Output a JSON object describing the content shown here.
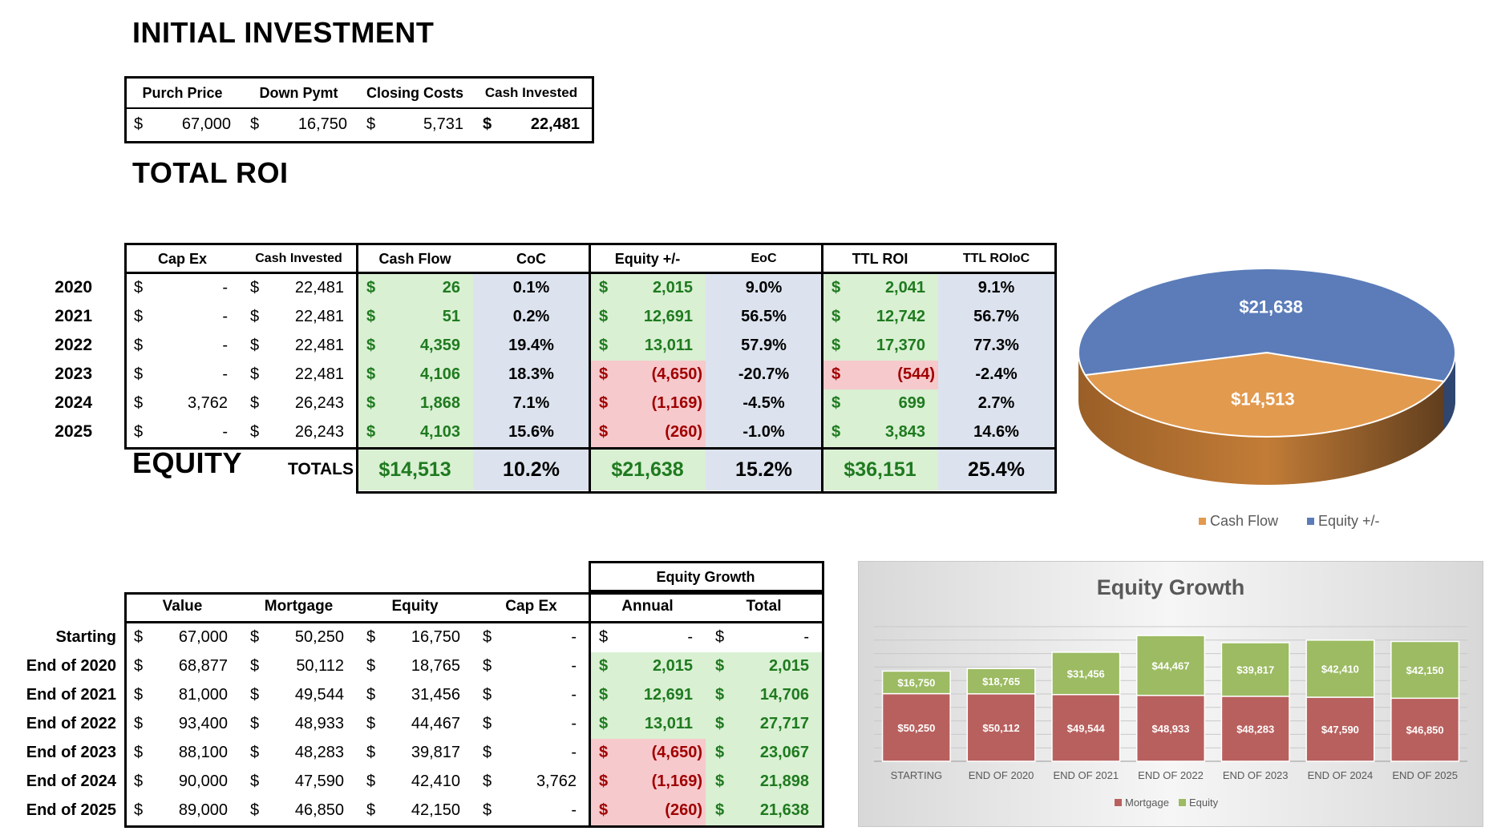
{
  "initial": {
    "title": "INITIAL INVESTMENT",
    "headers": [
      "Purch Price",
      "Down Pymt",
      "Closing Costs",
      "Cash Invested"
    ],
    "values": [
      "67,000",
      "16,750",
      "5,731",
      "22,481"
    ],
    "currency": "$"
  },
  "roi": {
    "title": "TOTAL ROI",
    "headers": [
      "Cap Ex",
      "Cash Invested",
      "Cash Flow",
      "CoC",
      "Equity +/-",
      "EoC",
      "TTL ROI",
      "TTL ROIoC"
    ],
    "rows": [
      {
        "year": "2020",
        "capex": "-",
        "cash_invested": "22,481",
        "cash_flow": "26",
        "coc": "0.1%",
        "equity": "2,015",
        "eoc": "9.0%",
        "ttl_roi": "2,041",
        "ttl_roioc": "9.1%"
      },
      {
        "year": "2021",
        "capex": "-",
        "cash_invested": "22,481",
        "cash_flow": "51",
        "coc": "0.2%",
        "equity": "12,691",
        "eoc": "56.5%",
        "ttl_roi": "12,742",
        "ttl_roioc": "56.7%"
      },
      {
        "year": "2022",
        "capex": "-",
        "cash_invested": "22,481",
        "cash_flow": "4,359",
        "coc": "19.4%",
        "equity": "13,011",
        "eoc": "57.9%",
        "ttl_roi": "17,370",
        "ttl_roioc": "77.3%"
      },
      {
        "year": "2023",
        "capex": "-",
        "cash_invested": "22,481",
        "cash_flow": "4,106",
        "coc": "18.3%",
        "equity": "(4,650)",
        "eoc": "-20.7%",
        "ttl_roi": "(544)",
        "ttl_roioc": "-2.4%"
      },
      {
        "year": "2024",
        "capex": "3,762",
        "cash_invested": "26,243",
        "cash_flow": "1,868",
        "coc": "7.1%",
        "equity": "(1,169)",
        "eoc": "-4.5%",
        "ttl_roi": "699",
        "ttl_roioc": "2.7%"
      },
      {
        "year": "2025",
        "capex": "-",
        "cash_invested": "26,243",
        "cash_flow": "4,103",
        "coc": "15.6%",
        "equity": "(260)",
        "eoc": "-1.0%",
        "ttl_roi": "3,843",
        "ttl_roioc": "14.6%"
      }
    ],
    "totals": {
      "label": "TOTALS",
      "cash_flow": "$14,513",
      "coc": "10.2%",
      "equity": "$21,638",
      "eoc": "15.2%",
      "ttl_roi": "$36,151",
      "ttl_roioc": "25.4%"
    }
  },
  "equity": {
    "title": "EQUITY",
    "group_header": "Equity Growth",
    "headers": [
      "Value",
      "Mortgage",
      "Equity",
      "Cap Ex",
      "Annual",
      "Total"
    ],
    "rows": [
      {
        "label": "Starting",
        "value": "67,000",
        "mortgage": "50,250",
        "equity": "16,750",
        "capex": "-",
        "annual": "-",
        "total": "-"
      },
      {
        "label": "End of 2020",
        "value": "68,877",
        "mortgage": "50,112",
        "equity": "18,765",
        "capex": "-",
        "annual": "2,015",
        "total": "2,015"
      },
      {
        "label": "End of 2021",
        "value": "81,000",
        "mortgage": "49,544",
        "equity": "31,456",
        "capex": "-",
        "annual": "12,691",
        "total": "14,706"
      },
      {
        "label": "End of 2022",
        "value": "93,400",
        "mortgage": "48,933",
        "equity": "44,467",
        "capex": "-",
        "annual": "13,011",
        "total": "27,717"
      },
      {
        "label": "End of 2023",
        "value": "88,100",
        "mortgage": "48,283",
        "equity": "39,817",
        "capex": "-",
        "annual": "(4,650)",
        "total": "23,067"
      },
      {
        "label": "End of 2024",
        "value": "90,000",
        "mortgage": "47,590",
        "equity": "42,410",
        "capex": "3,762",
        "annual": "(1,169)",
        "total": "21,898"
      },
      {
        "label": "End of 2025",
        "value": "89,000",
        "mortgage": "46,850",
        "equity": "42,150",
        "capex": "-",
        "annual": "(260)",
        "total": "21,638"
      }
    ]
  },
  "colors": {
    "cash_flow": "#e29a4f",
    "equity_pie": "#5b7cb9",
    "mortgage": "#b8605e",
    "equity_bar": "#9cbb62"
  },
  "chart_data": [
    {
      "type": "pie",
      "title": "",
      "labels": [
        "Cash Flow",
        "Equity +/-"
      ],
      "values": [
        14513,
        21638
      ],
      "value_labels": [
        "$14,513",
        "$21,638"
      ],
      "legend": "bottom"
    },
    {
      "type": "bar",
      "stacked": true,
      "title": "Equity Growth",
      "categories": [
        "STARTING",
        "END OF 2020",
        "END OF 2021",
        "END OF 2022",
        "END OF 2023",
        "END OF 2024",
        "END OF 2025"
      ],
      "series": [
        {
          "name": "Mortgage",
          "values": [
            50250,
            50112,
            49544,
            48933,
            48283,
            47590,
            46850
          ],
          "labels": [
            "$50,250",
            "$50,112",
            "$49,544",
            "$48,933",
            "$48,283",
            "$47,590",
            "$46,850"
          ]
        },
        {
          "name": "Equity",
          "values": [
            16750,
            18765,
            31456,
            44467,
            39817,
            42410,
            42150
          ],
          "labels": [
            "$16,750",
            "$18,765",
            "$31,456",
            "$44,467",
            "$39,817",
            "$42,410",
            "$42,150"
          ]
        }
      ],
      "ylim": [
        0,
        100000
      ],
      "legend": "bottom"
    }
  ]
}
